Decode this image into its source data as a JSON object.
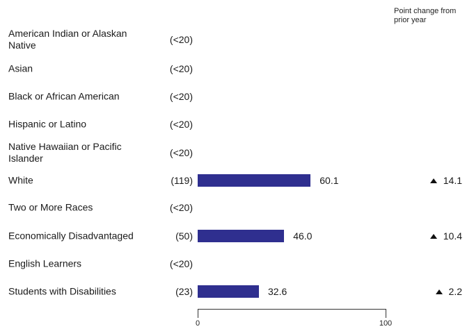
{
  "header_note": "Point change from prior year",
  "chart_data": {
    "type": "bar",
    "orientation": "horizontal",
    "xlim": [
      0,
      100
    ],
    "x_ticks": [
      "0",
      "100"
    ],
    "bar_color": "#2f2f8f",
    "rows": [
      {
        "label": "American Indian or Alaskan Native",
        "count": "(<20)",
        "value": null,
        "change": ""
      },
      {
        "label": "Asian",
        "count": "(<20)",
        "value": null,
        "change": ""
      },
      {
        "label": "Black or African American",
        "count": "(<20)",
        "value": null,
        "change": ""
      },
      {
        "label": "Hispanic or Latino",
        "count": "(<20)",
        "value": null,
        "change": ""
      },
      {
        "label": "Native Hawaiian or Pacific Islander",
        "count": "(<20)",
        "value": null,
        "change": ""
      },
      {
        "label": "White",
        "count": "(119)",
        "value": 60.1,
        "value_label": "60.1",
        "change": "14.1",
        "change_direction": "up"
      },
      {
        "label": "Two or More Races",
        "count": "(<20)",
        "value": null,
        "change": ""
      },
      {
        "label": "Economically Disadvantaged",
        "count": "(50)",
        "value": 46.0,
        "value_label": "46.0",
        "change": "10.4",
        "change_direction": "up"
      },
      {
        "label": "English Learners",
        "count": "(<20)",
        "value": null,
        "change": ""
      },
      {
        "label": "Students with Disabilities",
        "count": "(23)",
        "value": 32.6,
        "value_label": "32.6",
        "change": "2.2",
        "change_direction": "up"
      }
    ]
  }
}
